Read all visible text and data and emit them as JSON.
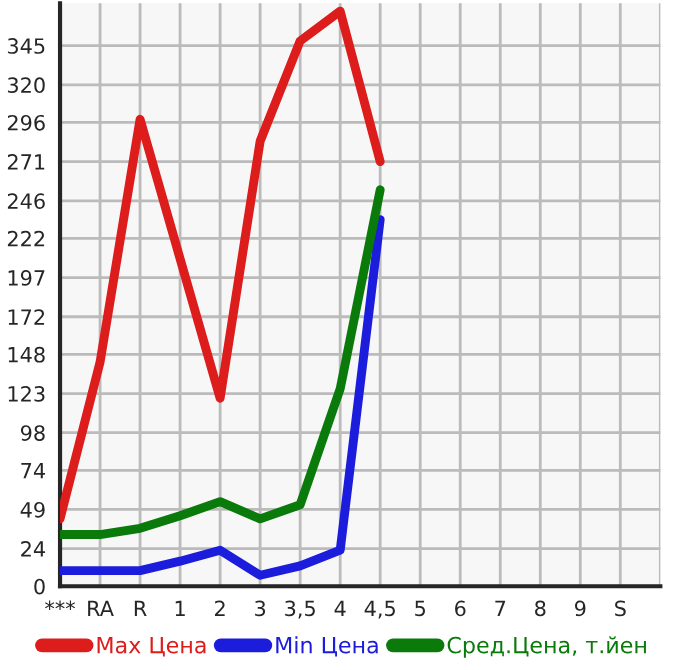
{
  "chart_data": {
    "type": "line",
    "categories": [
      "***",
      "RA",
      "R",
      "1",
      "2",
      "3",
      "3,5",
      "4",
      "4,5",
      "5",
      "6",
      "7",
      "8",
      "9",
      "S",
      null
    ],
    "series": [
      {
        "name": "Max Цена",
        "color": "#dd1c1c",
        "values": [
          43,
          143,
          298,
          209,
          120,
          284,
          348,
          367,
          271,
          null,
          null,
          null,
          null,
          null,
          null,
          null
        ]
      },
      {
        "name": "Min Цена",
        "color": "#1c1cdd",
        "values": [
          10,
          10,
          10,
          16,
          23,
          7,
          13,
          23,
          234,
          null,
          null,
          null,
          null,
          null,
          null,
          null
        ]
      },
      {
        "name": "Сред.Цена, т.йен",
        "color": "#0a7a0a",
        "values": [
          33,
          33,
          37,
          45,
          54,
          43,
          52,
          126,
          253,
          null,
          null,
          null,
          null,
          null,
          null,
          null
        ]
      }
    ],
    "ylim": [
      0,
      372
    ],
    "yticks": [
      0,
      24,
      49,
      74,
      98,
      123,
      148,
      172,
      197,
      222,
      246,
      271,
      296,
      320,
      345
    ],
    "grid": true,
    "legend": "bottom",
    "marker": "none",
    "line_style": "solid"
  }
}
